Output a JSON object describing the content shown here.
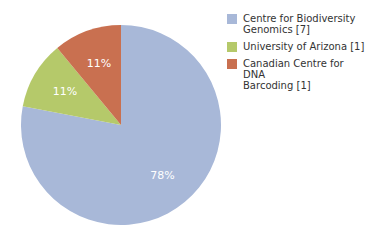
{
  "chart_data": {
    "type": "pie",
    "labels": [
      "Centre for Biodiversity\nGenomics [7]",
      "University of Arizona [1]",
      "Canadian Centre for DNA\nBarcoding [1]"
    ],
    "values": [
      78,
      11,
      11
    ],
    "value_labels": [
      "78%",
      "11%",
      "11%"
    ],
    "colors": [
      "#a8b8d8",
      "#b5c96a",
      "#c97050"
    ],
    "data_labels": true,
    "legend": "upper right"
  }
}
